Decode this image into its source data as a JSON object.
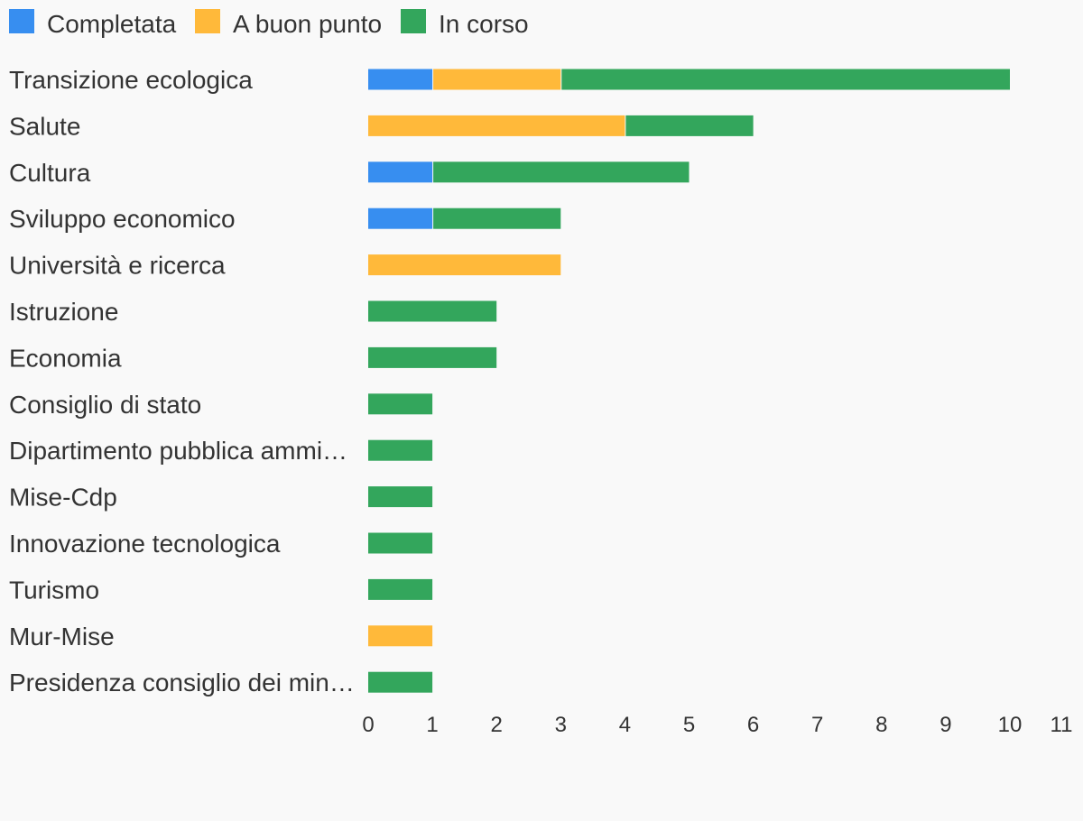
{
  "chart_data": {
    "type": "bar",
    "orientation": "horizontal",
    "stacked": true,
    "title": "",
    "xlabel": "",
    "ylabel": "",
    "xlim": [
      0,
      11
    ],
    "x_ticks": [
      0,
      1,
      2,
      3,
      4,
      5,
      6,
      7,
      8,
      9,
      10,
      11
    ],
    "grid": false,
    "legend_position": "top-left",
    "categories": [
      "Transizione ecologica",
      "Salute",
      "Cultura",
      "Sviluppo economico",
      "Università e ricerca",
      "Istruzione",
      "Economia",
      "Consiglio di stato",
      "Dipartimento pubblica ammi…",
      "Mise-Cdp",
      "Innovazione tecnologica",
      "Turismo",
      "Mur-Mise",
      "Presidenza consiglio dei min…"
    ],
    "series": [
      {
        "name": "Completata",
        "color": "#378ef0",
        "values": [
          1,
          0,
          1,
          1,
          0,
          0,
          0,
          0,
          0,
          0,
          0,
          0,
          0,
          0
        ]
      },
      {
        "name": "A buon punto",
        "color": "#ffb93a",
        "values": [
          2,
          4,
          0,
          0,
          3,
          0,
          0,
          0,
          0,
          0,
          0,
          0,
          1,
          0
        ]
      },
      {
        "name": "In corso",
        "color": "#33a65c",
        "values": [
          7,
          2,
          4,
          2,
          0,
          2,
          2,
          1,
          1,
          1,
          1,
          1,
          0,
          1
        ]
      }
    ]
  }
}
